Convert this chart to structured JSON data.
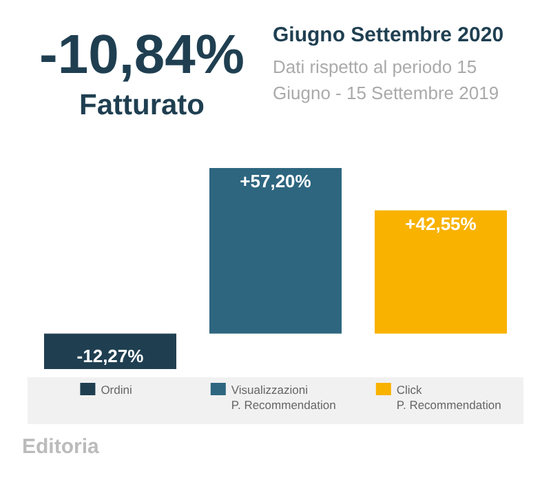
{
  "chart_data": {
    "type": "bar",
    "title": "Giugno Settembre 2020",
    "subtitle": "Dati rispetto al periodo 15 Giugno - 15 Settembre 2019",
    "annotations": [
      "-10,84%",
      "Fatturato",
      "Editoria"
    ],
    "categories": [
      "Ordini",
      "Visualizzazioni\nP. Recommendation",
      "Click\nP. Recommendation"
    ],
    "values": [
      -12.27,
      57.2,
      42.55
    ],
    "value_labels": [
      "-12,27%",
      "+57,20%",
      "+42,55%"
    ],
    "colors": [
      "#1f3f51",
      "#2e6680",
      "#f9b200"
    ],
    "tick_labels": "x"
  }
}
